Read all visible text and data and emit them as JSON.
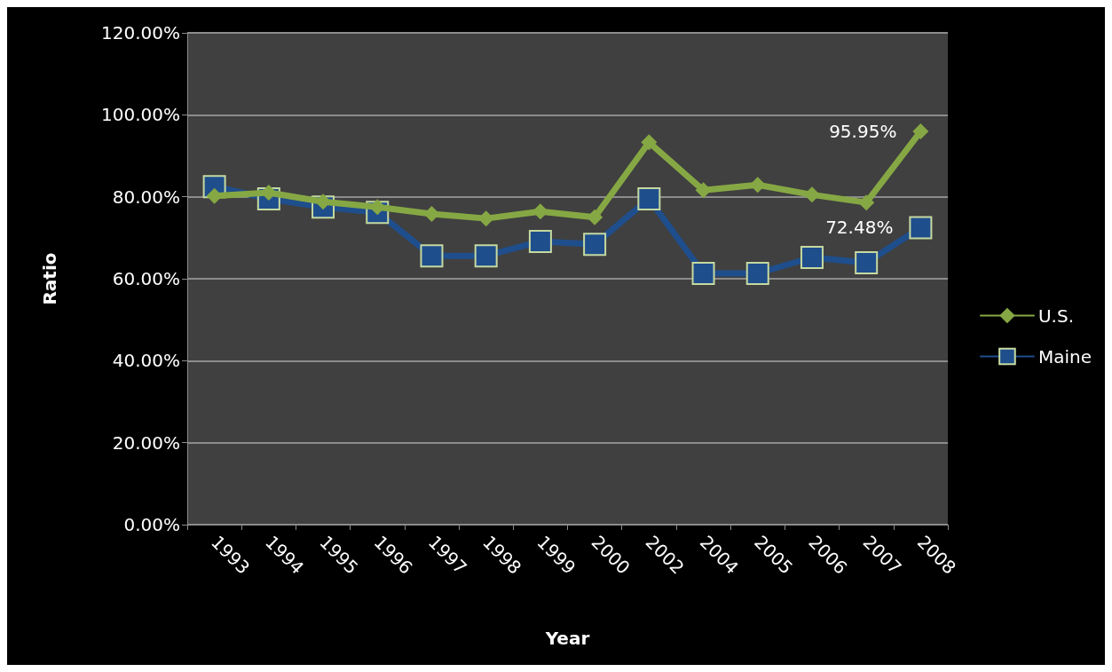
{
  "chart_data": {
    "type": "line",
    "xlabel": "Year",
    "ylabel": "Ratio",
    "categories": [
      "1993",
      "1994",
      "1995",
      "1996",
      "1997",
      "1998",
      "1999",
      "2000",
      "2002",
      "2004",
      "2005",
      "2006",
      "2007",
      "2008"
    ],
    "series": [
      {
        "name": "U.S.",
        "color": "#86a844",
        "marker": "diamond",
        "values": [
          80.2,
          81,
          78.8,
          77.5,
          75.8,
          74.7,
          76.4,
          75,
          93.3,
          81.6,
          82.9,
          80.5,
          78.6,
          95.95
        ],
        "value_labels": [
          null,
          null,
          null,
          null,
          null,
          null,
          null,
          null,
          null,
          null,
          null,
          null,
          null,
          "95.95%"
        ]
      },
      {
        "name": "Maine",
        "color": "#1f4e8c",
        "marker": "square",
        "values": [
          82.5,
          79.5,
          77.5,
          76.2,
          65.6,
          65.6,
          69.1,
          68.4,
          79.5,
          61.3,
          61.3,
          65.2,
          63.9,
          72.48
        ],
        "value_labels": [
          null,
          null,
          null,
          null,
          null,
          null,
          null,
          null,
          null,
          null,
          null,
          null,
          null,
          "72.48%"
        ]
      }
    ],
    "ylim": [
      0,
      120
    ],
    "yticks": [
      {
        "value": 0,
        "label": "0.00%"
      },
      {
        "value": 20,
        "label": "20.00%"
      },
      {
        "value": 40,
        "label": "40.00%"
      },
      {
        "value": 60,
        "label": "60.00%"
      },
      {
        "value": 80,
        "label": "80.00%"
      },
      {
        "value": 100,
        "label": "100.00%"
      },
      {
        "value": 120,
        "label": "120.00%"
      }
    ],
    "grid": "y",
    "legend": "right",
    "line_style": "solid"
  }
}
